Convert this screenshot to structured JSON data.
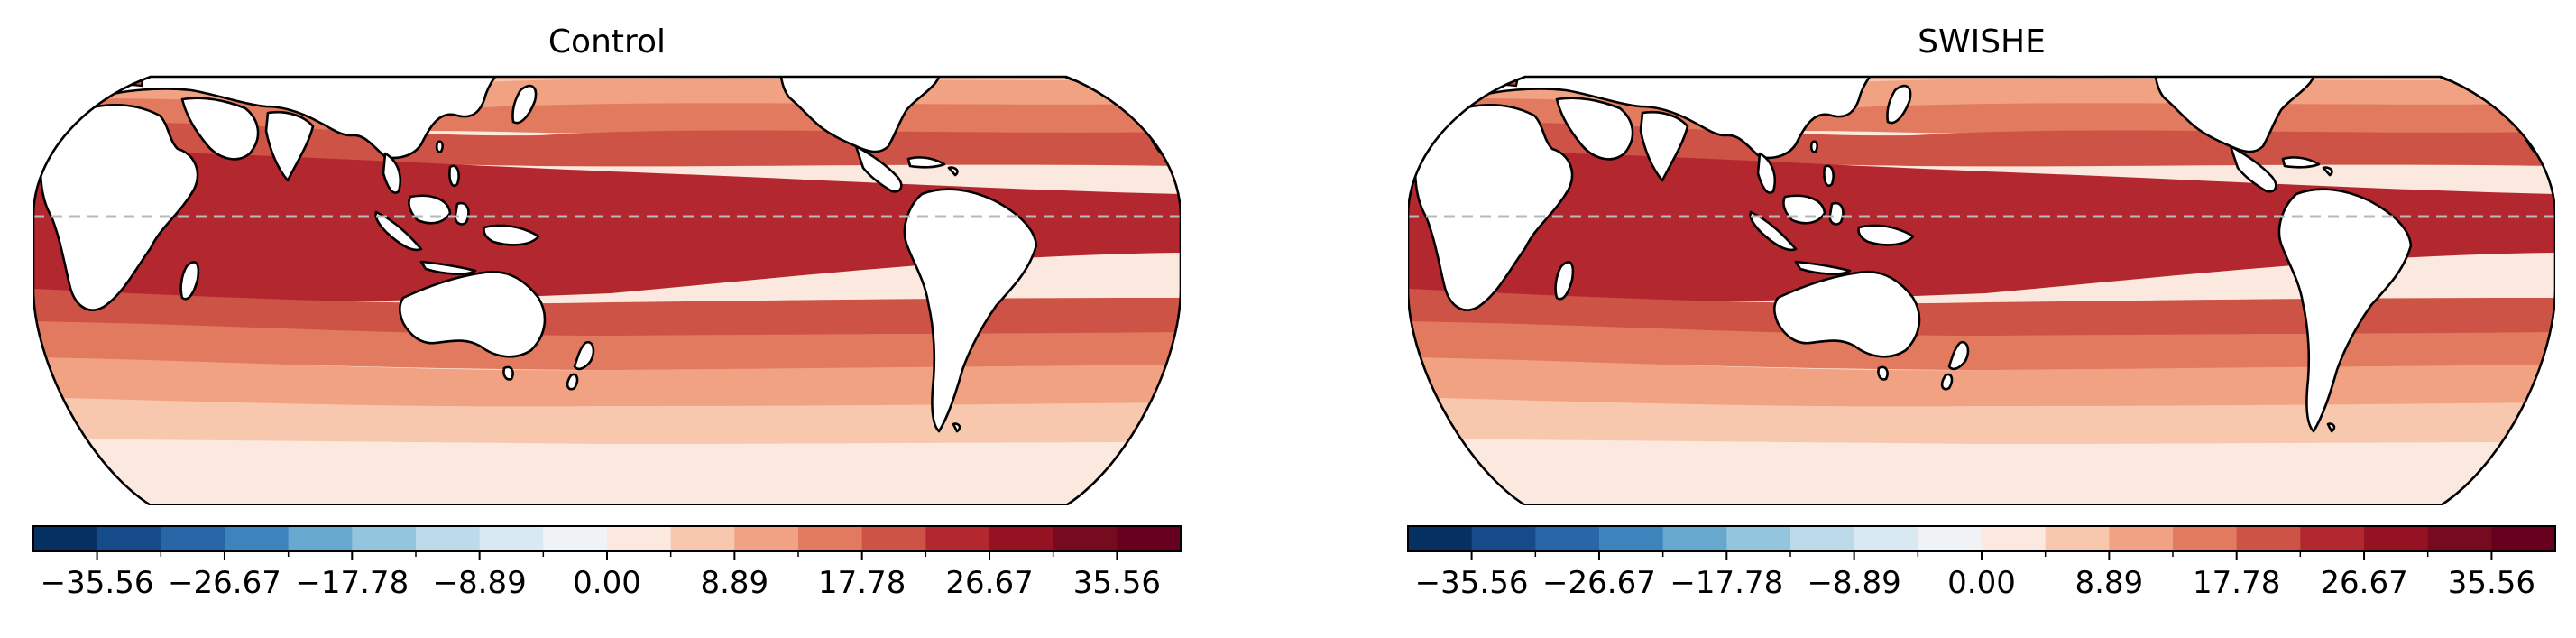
{
  "chart_data": [
    {
      "type": "heatmap",
      "title": "Control",
      "map_projection": "Robinson-like",
      "colormap": "RdBu_r",
      "colorbar": {
        "orientation": "horizontal",
        "range": [
          -40,
          40
        ],
        "levels": 18,
        "ticks": [
          -35.56,
          -26.67,
          -17.78,
          -8.89,
          0.0,
          8.89,
          17.78,
          26.67,
          35.56
        ],
        "tick_labels": [
          "−35.56",
          "−26.67",
          "−17.78",
          "−8.89",
          "0.00",
          "8.89",
          "17.78",
          "26.67",
          "35.56"
        ],
        "colors": [
          "#053061",
          "#164b8a",
          "#2866a8",
          "#3c84bb",
          "#67a8cf",
          "#93c5de",
          "#bcdaea",
          "#d9e9f1",
          "#f0f3f6",
          "#fbe8de",
          "#f8c8ae",
          "#f1a282",
          "#e17a5e",
          "#cd5346",
          "#b3282f",
          "#951222",
          "#760b1f",
          "#67001f"
        ]
      },
      "equator_line": true
    },
    {
      "type": "heatmap",
      "title": "SWISHE",
      "map_projection": "Robinson-like",
      "colormap": "RdBu_r",
      "colorbar": {
        "orientation": "horizontal",
        "range": [
          -40,
          40
        ],
        "levels": 18,
        "ticks": [
          -35.56,
          -26.67,
          -17.78,
          -8.89,
          0.0,
          8.89,
          17.78,
          26.67,
          35.56
        ],
        "tick_labels": [
          "−35.56",
          "−26.67",
          "−17.78",
          "−8.89",
          "0.00",
          "8.89",
          "17.78",
          "26.67",
          "35.56"
        ],
        "colors": [
          "#053061",
          "#164b8a",
          "#2866a8",
          "#3c84bb",
          "#67a8cf",
          "#93c5de",
          "#bcdaea",
          "#d9e9f1",
          "#f0f3f6",
          "#fbe8de",
          "#f8c8ae",
          "#f1a282",
          "#e17a5e",
          "#cd5346",
          "#b3282f",
          "#951222",
          "#760b1f",
          "#67001f"
        ]
      },
      "equator_line": true
    }
  ]
}
